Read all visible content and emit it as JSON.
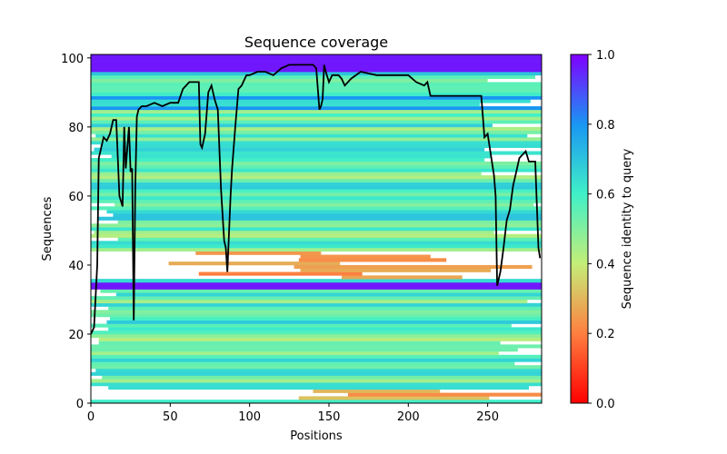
{
  "chart_data": {
    "type": "heatmap",
    "title": "Sequence coverage",
    "xlabel": "Positions",
    "ylabel": "Sequences",
    "xlim": [
      0,
      284
    ],
    "ylim": [
      0,
      101
    ],
    "x_ticks": [
      "0",
      "50",
      "100",
      "150",
      "200",
      "250"
    ],
    "y_ticks": [
      "0",
      "20",
      "40",
      "60",
      "80",
      "100"
    ],
    "colorbar": {
      "label": "Sequence identity to query",
      "colormap": "rainbow_r",
      "range": [
        0,
        1
      ],
      "ticks": [
        "0.0",
        "0.2",
        "0.4",
        "0.6",
        "0.8",
        "1.0"
      ]
    },
    "coverage_line": {
      "name": "coverage",
      "color": "#000000",
      "x": [
        0,
        2,
        4,
        5,
        6,
        8,
        10,
        12,
        14,
        16,
        18,
        20,
        21,
        22,
        24,
        25,
        26,
        27,
        28,
        29,
        30,
        32,
        35,
        40,
        45,
        50,
        55,
        58,
        62,
        66,
        68,
        69,
        70,
        72,
        74,
        76,
        78,
        80,
        82,
        84,
        85,
        86,
        88,
        89,
        91,
        93,
        95,
        98,
        100,
        105,
        110,
        115,
        120,
        125,
        130,
        135,
        140,
        142,
        144,
        145,
        146,
        147,
        148,
        150,
        152,
        154,
        156,
        158,
        160,
        164,
        170,
        180,
        190,
        200,
        205,
        210,
        212,
        214,
        220,
        230,
        240,
        244,
        246,
        248,
        250,
        252,
        254,
        255,
        256,
        258,
        260,
        262,
        264,
        266,
        268,
        270,
        272,
        274,
        276,
        278,
        280,
        282,
        283
      ],
      "y": [
        20,
        22,
        40,
        71,
        73,
        77,
        76,
        78,
        82,
        82,
        60,
        57,
        80,
        68,
        80,
        67,
        68,
        24,
        63,
        83,
        85,
        86,
        86,
        87,
        86,
        87,
        87,
        91,
        93,
        93,
        93,
        75,
        74,
        78,
        90,
        92,
        88,
        85,
        62,
        47,
        45,
        38,
        60,
        68,
        80,
        91,
        92,
        95,
        95,
        96,
        96,
        95,
        97,
        98,
        98,
        98,
        98,
        97,
        85,
        86,
        88,
        98,
        96,
        93,
        95,
        95,
        95,
        94,
        92,
        94,
        96,
        95,
        95,
        95,
        93,
        92,
        93,
        89,
        89,
        89,
        89,
        89,
        89,
        77,
        78,
        72,
        66,
        60,
        34,
        38,
        45,
        53,
        56,
        63,
        67,
        71,
        72,
        73,
        70,
        70,
        70,
        45,
        42
      ]
    },
    "grid": false
  }
}
